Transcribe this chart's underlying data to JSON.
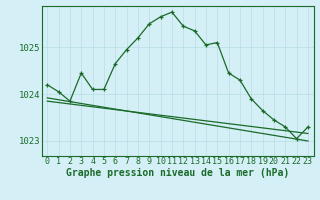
{
  "title": "Graphe pression niveau de la mer (hPa)",
  "background_color": "#d4eff5",
  "grid_color": "#b8dde6",
  "line_color": "#1a6b2a",
  "hours": [
    0,
    1,
    2,
    3,
    4,
    5,
    6,
    7,
    8,
    9,
    10,
    11,
    12,
    13,
    14,
    15,
    16,
    17,
    18,
    19,
    20,
    21,
    22,
    23
  ],
  "series1": [
    1024.2,
    1024.05,
    1023.85,
    1024.45,
    1024.1,
    1024.1,
    1024.65,
    1024.95,
    1025.2,
    1025.5,
    1025.65,
    1025.75,
    1025.45,
    1025.35,
    1025.05,
    1025.1,
    1024.45,
    1024.3,
    1023.9,
    1023.65,
    1023.45,
    1023.3,
    1023.05,
    1023.3
  ],
  "series2": [
    1023.92,
    1023.88,
    1023.84,
    1023.8,
    1023.76,
    1023.72,
    1023.68,
    1023.64,
    1023.6,
    1023.56,
    1023.52,
    1023.48,
    1023.44,
    1023.4,
    1023.36,
    1023.32,
    1023.28,
    1023.24,
    1023.2,
    1023.16,
    1023.12,
    1023.08,
    1023.04,
    1023.0
  ],
  "series3": [
    1023.85,
    1023.82,
    1023.79,
    1023.76,
    1023.73,
    1023.7,
    1023.67,
    1023.64,
    1023.61,
    1023.58,
    1023.55,
    1023.52,
    1023.49,
    1023.46,
    1023.43,
    1023.4,
    1023.37,
    1023.34,
    1023.31,
    1023.28,
    1023.25,
    1023.22,
    1023.19,
    1023.16
  ],
  "ylim": [
    1022.68,
    1025.88
  ],
  "yticks": [
    1023,
    1024,
    1025
  ],
  "tick_fontsize": 6.5,
  "title_fontsize": 7.0
}
